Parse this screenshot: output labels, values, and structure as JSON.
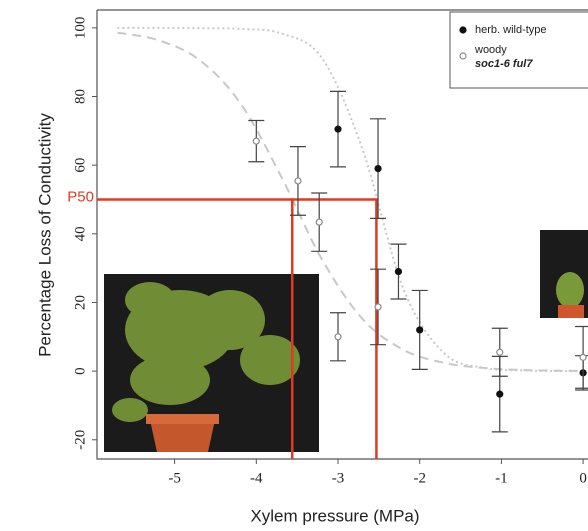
{
  "chart_data": {
    "type": "scatter",
    "x_label": "Xylem pressure (MPa)",
    "y_label": "Percentage Loss of Conductivity",
    "xlim": [
      -5.95,
      0.06
    ],
    "ylim": [
      -25.6,
      105.2
    ],
    "xticks": [
      -5,
      -4,
      -3,
      -2,
      -1,
      0
    ],
    "yticks": [
      -20,
      0,
      20,
      40,
      60,
      80,
      100
    ],
    "series": [
      {
        "name": "herb. wild-type",
        "color": "#111111",
        "marker": "filled",
        "x": [
          -3,
          -2.51,
          -2.26,
          -2,
          -1.02,
          0
        ],
        "values": [
          70.5,
          59,
          29,
          12,
          -6.7,
          -0.5
        ],
        "errors": [
          11,
          14.5,
          8,
          11.5,
          11,
          5
        ]
      },
      {
        "name": "woody",
        "genotype": "soc1-6 ful7",
        "color": "#888888",
        "marker": "open",
        "x": [
          -4,
          -3.49,
          -3.23,
          -3,
          -2.51,
          -1.02,
          0
        ],
        "values": [
          67,
          55.4,
          43.4,
          10,
          18.7,
          5.5,
          4
        ],
        "errors": [
          6,
          10,
          8.5,
          7,
          11,
          7,
          9
        ]
      }
    ],
    "fits": [
      {
        "style": "dotted",
        "x": [
          -5.7,
          -5.2,
          -4.7,
          -4.2,
          -3.7,
          -3.2,
          -2.7,
          -2.2,
          -1.7,
          -1.2,
          -0.7,
          -0.2,
          0
        ],
        "values": [
          100,
          100,
          99.9,
          99.7,
          98.4,
          91.3,
          64.6,
          24,
          5.2,
          0.9,
          0.2,
          0,
          0
        ]
      },
      {
        "style": "dashed",
        "x": [
          -5.7,
          -5.2,
          -4.7,
          -4.2,
          -3.7,
          -3.2,
          -2.7,
          -2.2,
          -1.7,
          -1.2,
          -0.7,
          -0.2,
          0
        ],
        "values": [
          98.6,
          96.4,
          90.7,
          78.2,
          56.9,
          32.7,
          15.2,
          6.2,
          2.4,
          0.9,
          0.3,
          0.1,
          0.1
        ]
      }
    ],
    "p50": {
      "label": "P50",
      "value": 50,
      "woody": -3.56,
      "herb": -2.53,
      "color": "#e03a20"
    }
  }
}
